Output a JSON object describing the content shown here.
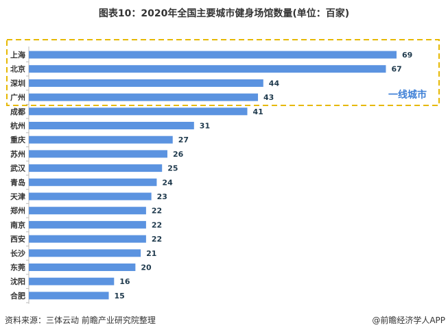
{
  "chart_data": {
    "type": "bar",
    "orientation": "horizontal",
    "title": "图表10：2020年全国主要城市健身场馆数量(单位：百家)",
    "categories": [
      "上海",
      "北京",
      "深圳",
      "广州",
      "成都",
      "杭州",
      "重庆",
      "苏州",
      "武汉",
      "青岛",
      "天津",
      "郑州",
      "南京",
      "西安",
      "长沙",
      "东莞",
      "沈阳",
      "合肥"
    ],
    "values": [
      69,
      67,
      44,
      43,
      41,
      31,
      27,
      26,
      25,
      24,
      23,
      22,
      22,
      22,
      21,
      20,
      16,
      15
    ],
    "xlim": [
      0,
      69
    ],
    "grid": false,
    "bar_color": "#5b93e0",
    "highlight": {
      "label": "一线城市",
      "count": 4,
      "color": "#e6b800",
      "label_color": "#3d7fd6"
    }
  },
  "footer": {
    "source": "资料来源：三体云动 前瞻产业研究院整理",
    "credit": "@前瞻经济学人APP"
  }
}
